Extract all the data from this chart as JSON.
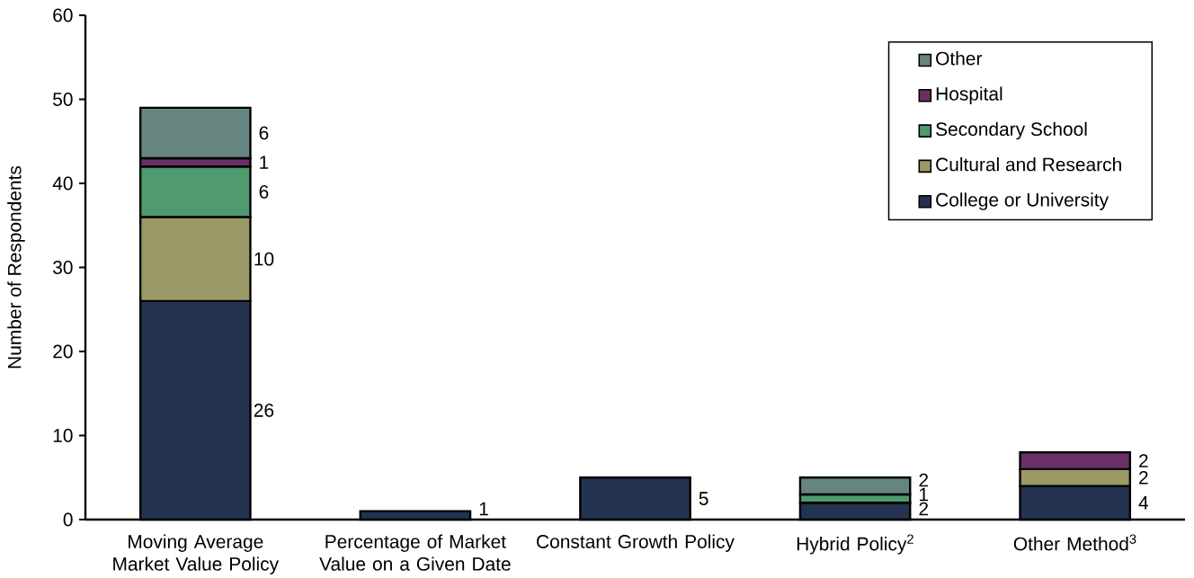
{
  "chart_data": {
    "type": "bar",
    "stacked": true,
    "ylabel": "Number of Respondents",
    "categories": [
      "Moving Average Market Value Policy",
      "Percentage of Market Value on a Given Date",
      "Constant Growth Policy",
      "Hybrid Policy$^{2}$",
      "Other Method$^{3}$"
    ],
    "series": [
      {
        "name": "College or University",
        "color": "#233350",
        "values": [
          26,
          1,
          5,
          2,
          4
        ]
      },
      {
        "name": "Cultural and Research",
        "color": "#9b9a67",
        "values": [
          10,
          null,
          null,
          null,
          2
        ]
      },
      {
        "name": "Secondary School",
        "color": "#4f9a6e",
        "values": [
          6,
          null,
          null,
          1,
          null
        ]
      },
      {
        "name": "Hospital",
        "color": "#6a3066",
        "values": [
          1,
          null,
          null,
          null,
          2
        ]
      },
      {
        "name": "Other",
        "color": "#678580",
        "values": [
          6,
          null,
          null,
          2,
          null
        ]
      }
    ],
    "ylim": [
      0,
      60
    ],
    "yticks": [
      0,
      10,
      20,
      30,
      40,
      50,
      60
    ],
    "legend": "top right",
    "data_labels": true
  }
}
